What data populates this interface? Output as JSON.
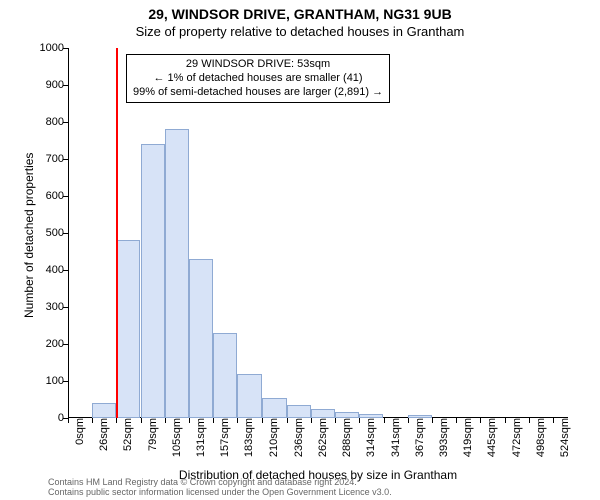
{
  "title_main": "29, WINDSOR DRIVE, GRANTHAM, NG31 9UB",
  "title_sub": "Size of property relative to detached houses in Grantham",
  "ylabel": "Number of detached properties",
  "xlabel": "Distribution of detached houses by size in Grantham",
  "footer_l1": "Contains HM Land Registry data © Crown copyright and database right 2024.",
  "footer_l2": "Contains public sector information licensed under the Open Government Licence v3.0.",
  "chart": {
    "type": "histogram",
    "background_color": "#ffffff",
    "axis_color": "#000000",
    "bar_fill": "#d7e3f7",
    "bar_stroke": "#8faad3",
    "ref_line_color": "#ff0000",
    "ref_line_x": 53,
    "annotation_border": "#000000",
    "annotation_bg": "#ffffff",
    "annotation_lines": [
      "29 WINDSOR DRIVE: 53sqm",
      "← 1% of detached houses are smaller (41)",
      "99% of semi-detached houses are larger (2,891) →"
    ],
    "annotation_fontsize": 11,
    "title_fontsize": 14,
    "subtitle_fontsize": 13,
    "label_fontsize": 12,
    "tick_fontsize": 11,
    "xlim": [
      0,
      540
    ],
    "ylim": [
      0,
      1000
    ],
    "ytick_step": 100,
    "xticks": [
      0,
      26,
      52,
      79,
      105,
      131,
      157,
      183,
      210,
      236,
      262,
      288,
      314,
      341,
      367,
      393,
      419,
      445,
      472,
      498,
      524
    ],
    "xtick_labels": [
      "0sqm",
      "26sqm",
      "52sqm",
      "79sqm",
      "105sqm",
      "131sqm",
      "157sqm",
      "183sqm",
      "210sqm",
      "236sqm",
      "262sqm",
      "288sqm",
      "314sqm",
      "341sqm",
      "367sqm",
      "393sqm",
      "419sqm",
      "445sqm",
      "472sqm",
      "498sqm",
      "524sqm"
    ],
    "bin_width": 26,
    "bars": [
      {
        "x0": 0,
        "y": 0
      },
      {
        "x0": 26,
        "y": 40
      },
      {
        "x0": 52,
        "y": 480
      },
      {
        "x0": 79,
        "y": 740
      },
      {
        "x0": 105,
        "y": 780
      },
      {
        "x0": 131,
        "y": 430
      },
      {
        "x0": 157,
        "y": 230
      },
      {
        "x0": 183,
        "y": 120
      },
      {
        "x0": 210,
        "y": 55
      },
      {
        "x0": 236,
        "y": 35
      },
      {
        "x0": 262,
        "y": 25
      },
      {
        "x0": 288,
        "y": 15
      },
      {
        "x0": 314,
        "y": 12
      },
      {
        "x0": 341,
        "y": 0
      },
      {
        "x0": 367,
        "y": 8
      },
      {
        "x0": 393,
        "y": 0
      },
      {
        "x0": 419,
        "y": 0
      },
      {
        "x0": 445,
        "y": 0
      },
      {
        "x0": 472,
        "y": 0
      },
      {
        "x0": 498,
        "y": 0
      }
    ]
  }
}
